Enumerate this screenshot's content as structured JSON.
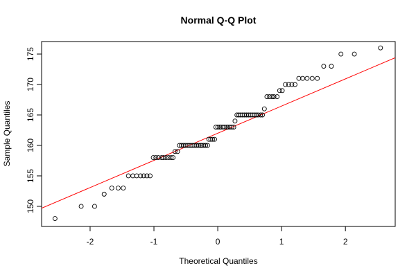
{
  "chart_data": {
    "type": "scatter",
    "title": "Normal Q-Q Plot",
    "x_label": "Theoretical Quantiles",
    "y_label": "Sample Quantiles",
    "x": [
      -2.55,
      -2.14,
      -1.93,
      -1.78,
      -1.66,
      -1.56,
      -1.48,
      -1.4,
      -1.33,
      -1.27,
      -1.21,
      -1.16,
      -1.11,
      -1.06,
      -1.01,
      -0.97,
      -0.93,
      -0.88,
      -0.85,
      -0.81,
      -0.77,
      -0.73,
      -0.7,
      -0.67,
      -0.63,
      -0.6,
      -0.57,
      -0.54,
      -0.51,
      -0.48,
      -0.45,
      -0.42,
      -0.39,
      -0.36,
      -0.33,
      -0.3,
      -0.27,
      -0.25,
      -0.22,
      -0.19,
      -0.16,
      -0.14,
      -0.11,
      -0.08,
      -0.05,
      -0.03,
      0,
      0.03,
      0.05,
      0.08,
      0.11,
      0.14,
      0.16,
      0.19,
      0.22,
      0.25,
      0.27,
      0.3,
      0.33,
      0.36,
      0.39,
      0.42,
      0.45,
      0.48,
      0.51,
      0.54,
      0.57,
      0.6,
      0.63,
      0.67,
      0.7,
      0.73,
      0.77,
      0.81,
      0.85,
      0.88,
      0.93,
      0.97,
      1.01,
      1.06,
      1.11,
      1.16,
      1.21,
      1.27,
      1.33,
      1.4,
      1.48,
      1.56,
      1.66,
      1.78,
      1.93,
      2.14,
      2.55
    ],
    "values": [
      148,
      150,
      150,
      152,
      153,
      153,
      153,
      155,
      155,
      155,
      155,
      155,
      155,
      155,
      158,
      158,
      158,
      158,
      158,
      158,
      158,
      158,
      158,
      159,
      159,
      160,
      160,
      160,
      160,
      160,
      160,
      160,
      160,
      160,
      160,
      160,
      160,
      160,
      160,
      160,
      160,
      161,
      161,
      161,
      161,
      163,
      163,
      163,
      163,
      163,
      163,
      163,
      163,
      163,
      163,
      163,
      164,
      165,
      165,
      165,
      165,
      165,
      165,
      165,
      165,
      165,
      165,
      165,
      165,
      165,
      165,
      166,
      168,
      168,
      168,
      168,
      168,
      169,
      169,
      170,
      170,
      170,
      170,
      171,
      171,
      171,
      171,
      171,
      173,
      173,
      175,
      175,
      176
    ],
    "color": "#000000",
    "line": {
      "intercept": 162,
      "slope": 4.46,
      "color": "#ff0000"
    },
    "xlim": [
      -2.76,
      2.78
    ],
    "ylim": [
      146.7,
      177.05
    ],
    "xticks": [
      -2,
      -1,
      0,
      1,
      2
    ],
    "yticks": [
      150,
      155,
      160,
      165,
      170,
      175
    ]
  }
}
